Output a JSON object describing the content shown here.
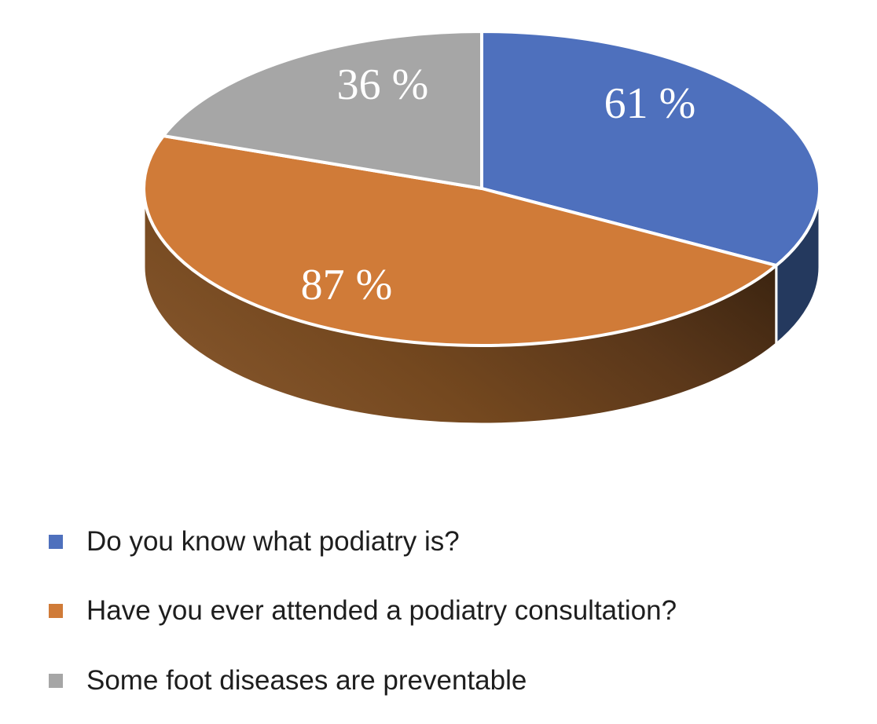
{
  "chart_data": {
    "type": "pie",
    "projection": "3d",
    "start_angle_deg": 0,
    "direction": "clockwise",
    "categories": [
      "Do you know what podiatry is?",
      "Have you ever attended a podiatry consultation?",
      "Some foot diseases are preventable"
    ],
    "values": [
      61,
      87,
      36
    ],
    "data_labels": [
      "61 %",
      "87 %",
      "36 %"
    ],
    "colors": [
      "#4E70BD",
      "#D07B38",
      "#A6A6A6"
    ],
    "side_colors": [
      "#24395E",
      "gradient",
      null
    ],
    "side_gradient": [
      "#85562C",
      "#74481F",
      "#5A371A",
      "#38220F"
    ],
    "label_text_color": "#FFFFFF",
    "legend_text_color": "#1E1E1E",
    "legend_position": "bottom-left",
    "background": "#FFFFFF"
  }
}
